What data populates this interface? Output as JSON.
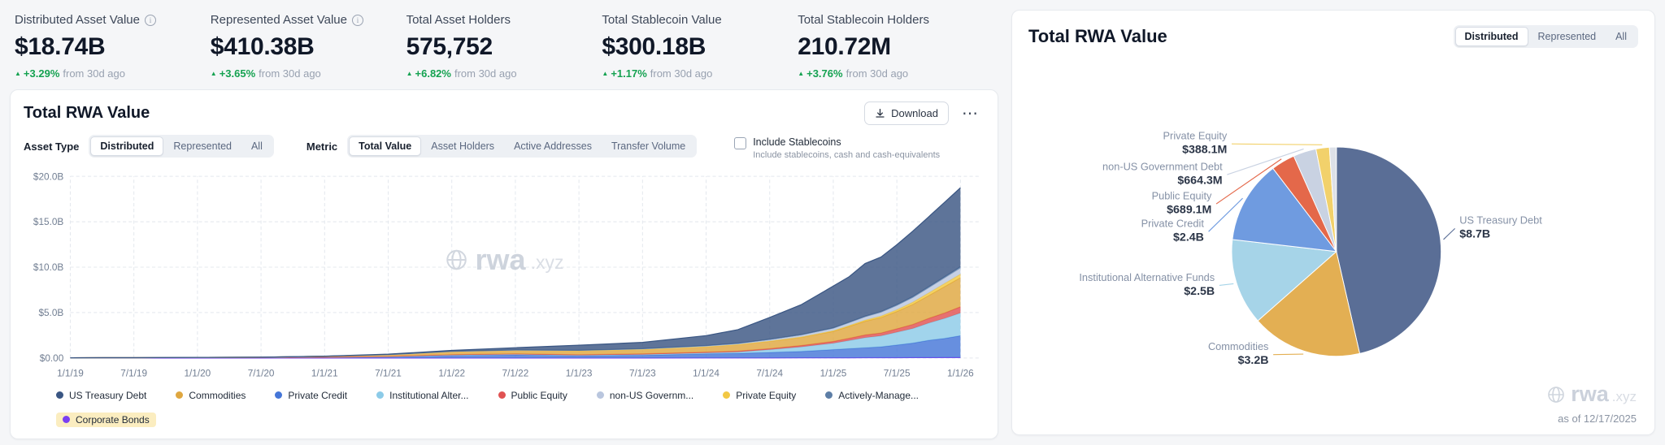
{
  "stats": {
    "positive_color": "#15a251",
    "items": [
      {
        "label": "Distributed Asset Value",
        "info": true,
        "value": "$18.74B",
        "delta": "+3.29%",
        "delta_suffix": "from 30d ago"
      },
      {
        "label": "Represented Asset Value",
        "info": true,
        "value": "$410.38B",
        "delta": "+3.65%",
        "delta_suffix": "from 30d ago"
      },
      {
        "label": "Total Asset Holders",
        "info": false,
        "value": "575,752",
        "delta": "+6.82%",
        "delta_suffix": "from 30d ago"
      },
      {
        "label": "Total Stablecoin Value",
        "info": false,
        "value": "$300.18B",
        "delta": "+1.17%",
        "delta_suffix": "from 30d ago"
      },
      {
        "label": "Total Stablecoin Holders",
        "info": false,
        "value": "210.72M",
        "delta": "+3.76%",
        "delta_suffix": "from 30d ago"
      }
    ]
  },
  "left_panel": {
    "title": "Total RWA Value",
    "download_label": "Download",
    "asset_type_label": "Asset Type",
    "asset_type_options": [
      "Distributed",
      "Represented",
      "All"
    ],
    "asset_type_selected": "Distributed",
    "metric_label": "Metric",
    "metric_options": [
      "Total Value",
      "Asset Holders",
      "Active Addresses",
      "Transfer Volume"
    ],
    "metric_selected": "Total Value",
    "stablecoins_checkbox_label": "Include Stablecoins",
    "stablecoins_checkbox_sublabel": "Include stablecoins, cash and cash-equivalents",
    "watermark_bold": "rwa",
    "watermark_suffix": ".xyz"
  },
  "right_panel": {
    "title": "Total RWA Value",
    "toggle_options": [
      "Distributed",
      "Represented",
      "All"
    ],
    "toggle_selected": "Distributed",
    "as_of": "as of 12/17/2025",
    "watermark_bold": "rwa",
    "watermark_suffix": ".xyz"
  },
  "chart_data": [
    {
      "type": "area",
      "stacked": true,
      "title": "Total RWA Value",
      "xlabel": "",
      "ylabel": "",
      "ylim": [
        0,
        20
      ],
      "grid": true,
      "legend_position": "bottom",
      "y_ticks": [
        {
          "value": 0,
          "label": "$0.00"
        },
        {
          "value": 5,
          "label": "$5.0B"
        },
        {
          "value": 10,
          "label": "$10.0B"
        },
        {
          "value": 15,
          "label": "$15.0B"
        },
        {
          "value": 20,
          "label": "$20.0B"
        }
      ],
      "x_ticks": [
        {
          "value": 2019,
          "label": "1/1/19"
        },
        {
          "value": 2019.5,
          "label": "7/1/19"
        },
        {
          "value": 2020,
          "label": "1/1/20"
        },
        {
          "value": 2020.5,
          "label": "7/1/20"
        },
        {
          "value": 2021,
          "label": "1/1/21"
        },
        {
          "value": 2021.5,
          "label": "7/1/21"
        },
        {
          "value": 2022,
          "label": "1/1/22"
        },
        {
          "value": 2022.5,
          "label": "7/1/22"
        },
        {
          "value": 2023,
          "label": "1/1/23"
        },
        {
          "value": 2023.5,
          "label": "7/1/23"
        },
        {
          "value": 2024,
          "label": "1/1/24"
        },
        {
          "value": 2024.5,
          "label": "7/1/24"
        },
        {
          "value": 2025,
          "label": "1/1/25"
        },
        {
          "value": 2025.5,
          "label": "7/1/25"
        },
        {
          "value": 2026,
          "label": "1/1/26"
        }
      ],
      "x": [
        2019,
        2019.5,
        2020,
        2020.5,
        2021,
        2021.5,
        2022,
        2022.5,
        2023,
        2023.5,
        2024,
        2024.25,
        2024.5,
        2024.75,
        2025,
        2025.125,
        2025.25,
        2025.375,
        2025.5,
        2025.625,
        2025.75,
        2025.875,
        2026
      ],
      "series": [
        {
          "name": "US Treasury Debt",
          "color": "#3a5683",
          "values": [
            0,
            0,
            0,
            0,
            0.01,
            0.05,
            0.1,
            0.25,
            0.55,
            0.7,
            1.1,
            1.5,
            2.4,
            3.3,
            4.6,
            5.0,
            5.8,
            6.0,
            6.6,
            7.2,
            7.7,
            8.2,
            8.7
          ]
        },
        {
          "name": "Commodities",
          "color": "#dfa740",
          "values": [
            0,
            0,
            0.01,
            0.03,
            0.1,
            0.2,
            0.35,
            0.4,
            0.45,
            0.5,
            0.6,
            0.7,
            0.8,
            0.9,
            1.1,
            1.3,
            1.5,
            1.7,
            1.9,
            2.2,
            2.5,
            2.9,
            3.2
          ]
        },
        {
          "name": "Private Credit",
          "color": "#4576d8",
          "values": [
            0.02,
            0.03,
            0.05,
            0.06,
            0.08,
            0.15,
            0.3,
            0.35,
            0.25,
            0.3,
            0.45,
            0.5,
            0.6,
            0.7,
            0.9,
            1.0,
            1.1,
            1.2,
            1.4,
            1.6,
            1.9,
            2.1,
            2.4
          ]
        },
        {
          "name": "Institutional Alter...",
          "color": "#8ccbe8",
          "values": [
            0,
            0,
            0,
            0,
            0,
            0,
            0.02,
            0.05,
            0.05,
            0.08,
            0.1,
            0.15,
            0.3,
            0.5,
            0.7,
            0.9,
            1.1,
            1.2,
            1.4,
            1.6,
            1.9,
            2.2,
            2.5
          ]
        },
        {
          "name": "Public Equity",
          "color": "#e05252",
          "values": [
            0,
            0,
            0,
            0,
            0.01,
            0.02,
            0.05,
            0.06,
            0.06,
            0.07,
            0.08,
            0.1,
            0.12,
            0.15,
            0.2,
            0.25,
            0.3,
            0.32,
            0.38,
            0.45,
            0.52,
            0.6,
            0.689
          ]
        },
        {
          "name": "non-US Governm...",
          "color": "#b9c6de",
          "values": [
            0,
            0,
            0,
            0,
            0,
            0,
            0.01,
            0.02,
            0.03,
            0.05,
            0.08,
            0.1,
            0.15,
            0.2,
            0.25,
            0.3,
            0.35,
            0.4,
            0.45,
            0.5,
            0.55,
            0.6,
            0.664
          ]
        },
        {
          "name": "Private Equity",
          "color": "#f2c844",
          "values": [
            0,
            0,
            0,
            0,
            0,
            0,
            0,
            0,
            0,
            0,
            0.01,
            0.02,
            0.03,
            0.05,
            0.08,
            0.1,
            0.13,
            0.16,
            0.2,
            0.25,
            0.3,
            0.35,
            0.388
          ]
        },
        {
          "name": "Actively-Manage...",
          "color": "#5d7ea6",
          "values": [
            0,
            0,
            0,
            0,
            0,
            0,
            0,
            0,
            0.01,
            0.02,
            0.03,
            0.04,
            0.05,
            0.06,
            0.07,
            0.08,
            0.09,
            0.1,
            0.11,
            0.12,
            0.13,
            0.14,
            0.15
          ]
        },
        {
          "name": "Corporate Bonds",
          "color": "#7a3ff2",
          "highlight": true,
          "values": [
            0,
            0,
            0,
            0,
            0,
            0,
            0,
            0,
            0,
            0,
            0.01,
            0.01,
            0.01,
            0.02,
            0.02,
            0.02,
            0.03,
            0.03,
            0.03,
            0.04,
            0.04,
            0.05,
            0.05
          ]
        }
      ],
      "stack_order": [
        8,
        2,
        3,
        4,
        1,
        6,
        5,
        7,
        0
      ]
    },
    {
      "type": "pie",
      "title": "Total RWA Value",
      "slices": [
        {
          "label": "US Treasury Debt",
          "value_label": "$8.7B",
          "value": 8.7,
          "color": "#5a6e96"
        },
        {
          "label": "Commodities",
          "value_label": "$3.2B",
          "value": 3.2,
          "color": "#e3af53"
        },
        {
          "label": "Institutional Alternative Funds",
          "value_label": "$2.5B",
          "value": 2.5,
          "color": "#a6d4e8"
        },
        {
          "label": "Private Credit",
          "value_label": "$2.4B",
          "value": 2.4,
          "color": "#6f9be0"
        },
        {
          "label": "Public Equity",
          "value_label": "$689.1M",
          "value": 0.689,
          "color": "#e4684a"
        },
        {
          "label": "non-US Government Debt",
          "value_label": "$664.3M",
          "value": 0.664,
          "color": "#c9d2e2"
        },
        {
          "label": "Private Equity",
          "value_label": "$388.1M",
          "value": 0.388,
          "color": "#f2d16b"
        },
        {
          "label": "",
          "value_label": "",
          "value": 0.2,
          "color": "#dde1e8"
        }
      ]
    }
  ]
}
